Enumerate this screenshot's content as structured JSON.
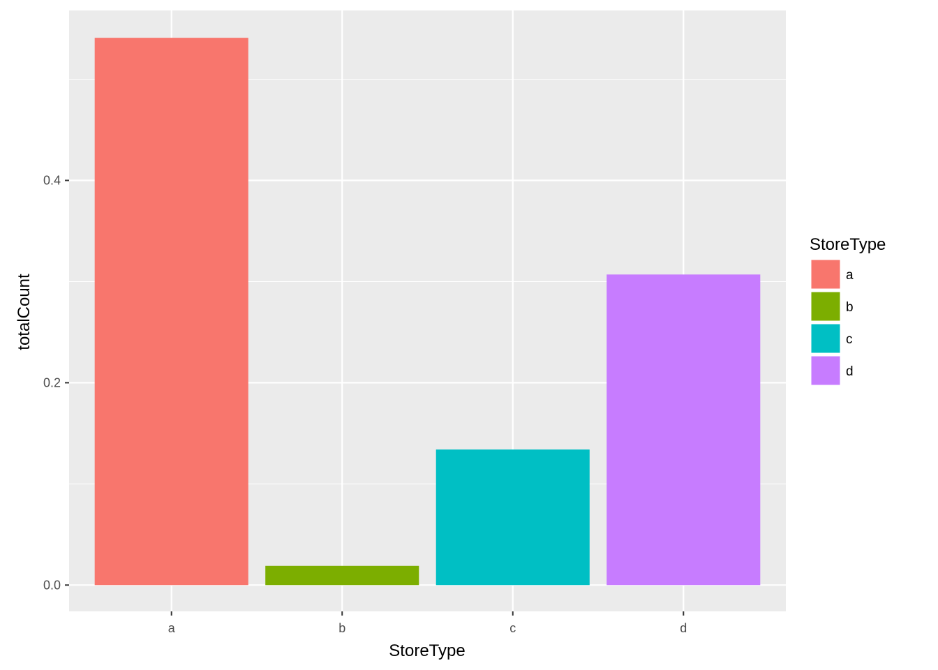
{
  "chart_data": {
    "type": "bar",
    "categories": [
      "a",
      "b",
      "c",
      "d"
    ],
    "values": [
      0.541,
      0.019,
      0.134,
      0.307
    ],
    "colors": [
      "#F8766D",
      "#7CAE00",
      "#00BFC4",
      "#C77CFF"
    ],
    "xlabel": "StoreType",
    "ylabel": "totalCount",
    "ylim": [
      -0.026,
      0.568
    ],
    "yticks": [
      0.0,
      0.2,
      0.4
    ],
    "ytick_labels": [
      "0.0",
      "0.2",
      "0.4"
    ],
    "grid": true,
    "panel_background": "#EBEBEB",
    "legend": {
      "title": "StoreType",
      "position": "right",
      "entries": [
        "a",
        "b",
        "c",
        "d"
      ]
    }
  }
}
